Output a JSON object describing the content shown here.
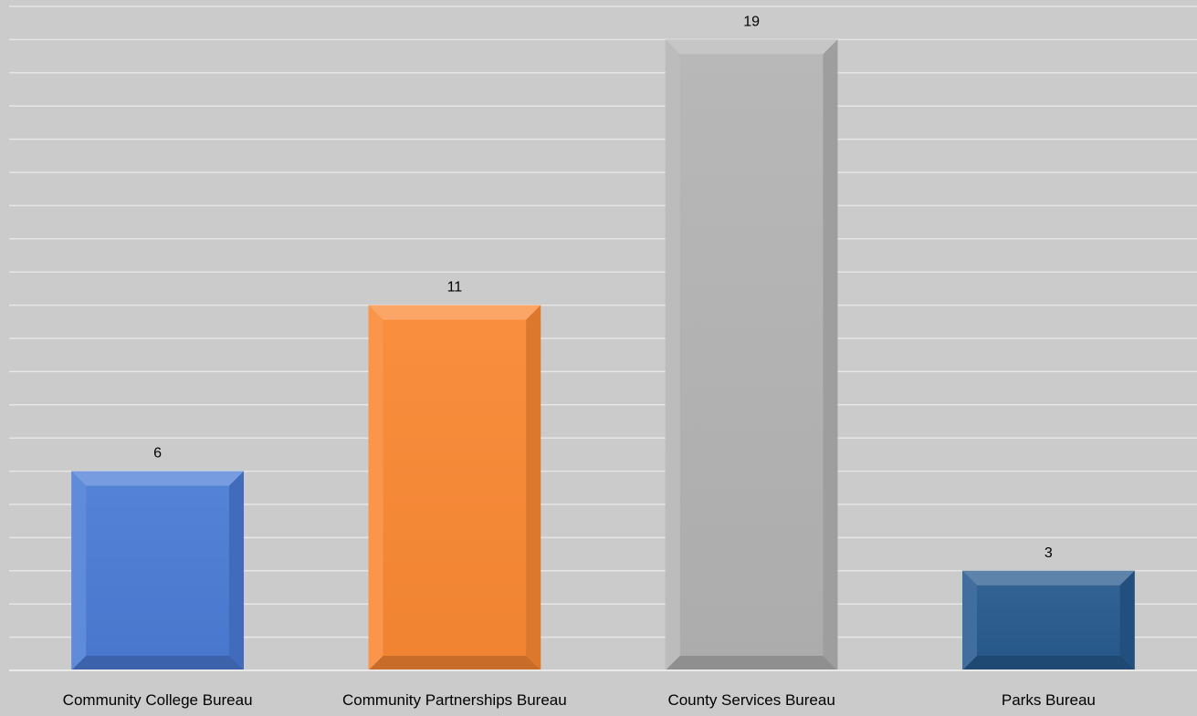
{
  "chart_data": {
    "type": "bar",
    "title": "",
    "xlabel": "",
    "ylabel": "",
    "categories": [
      "Community College Bureau",
      "Community Partnerships Bureau",
      "County Services Bureau",
      "Parks Bureau"
    ],
    "values": [
      6,
      11,
      19,
      3
    ],
    "ylim": [
      0,
      20
    ],
    "grid": true,
    "legend": "none",
    "bar_colors": [
      "#4a7bd4",
      "#f98833",
      "#b3b3b3",
      "#275a8e"
    ],
    "background_color": "#cbcbcb",
    "gridline_color": "#e6e6e6"
  }
}
